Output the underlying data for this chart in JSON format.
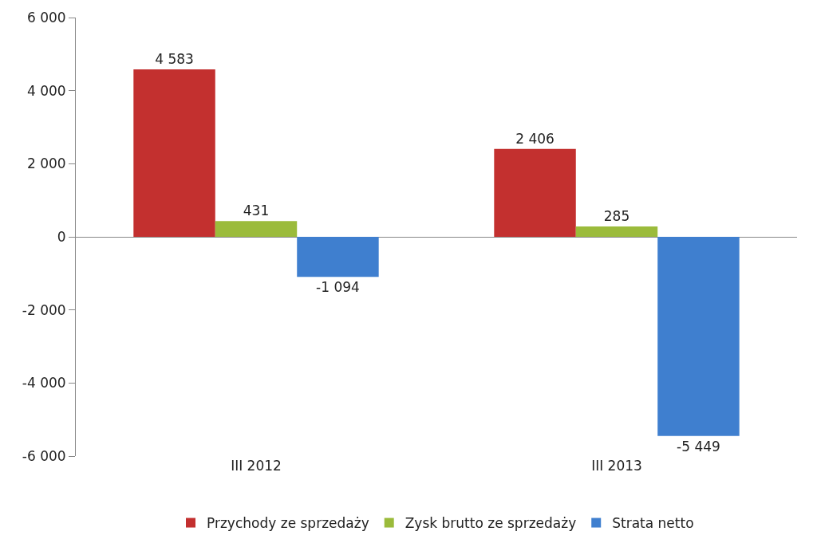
{
  "chart_data": {
    "type": "bar",
    "categories": [
      "III 2012",
      "III 2013"
    ],
    "series": [
      {
        "name": "Przychody ze sprzedaży",
        "color": "#c3302f",
        "values": [
          4583,
          2406
        ],
        "value_labels": [
          "4 583",
          "2 406"
        ]
      },
      {
        "name": "Zysk brutto ze sprzedaży",
        "color": "#9bbb3b",
        "values": [
          431,
          285
        ],
        "value_labels": [
          "431",
          "285"
        ]
      },
      {
        "name": "Strata netto",
        "color": "#3f7fcf",
        "values": [
          -1094,
          -5449
        ],
        "value_labels": [
          "-1 094",
          "-5 449"
        ]
      }
    ],
    "ylim": [
      -6000,
      6000
    ],
    "yticks": [
      {
        "value": -6000,
        "label": "-6 000"
      },
      {
        "value": -4000,
        "label": "-4 000"
      },
      {
        "value": -2000,
        "label": "-2 000"
      },
      0,
      {
        "value": 2000,
        "label": "2 000"
      },
      {
        "value": 4000,
        "label": "4 000"
      },
      {
        "value": 6000,
        "label": "6 000"
      }
    ],
    "legend": "bottom"
  }
}
